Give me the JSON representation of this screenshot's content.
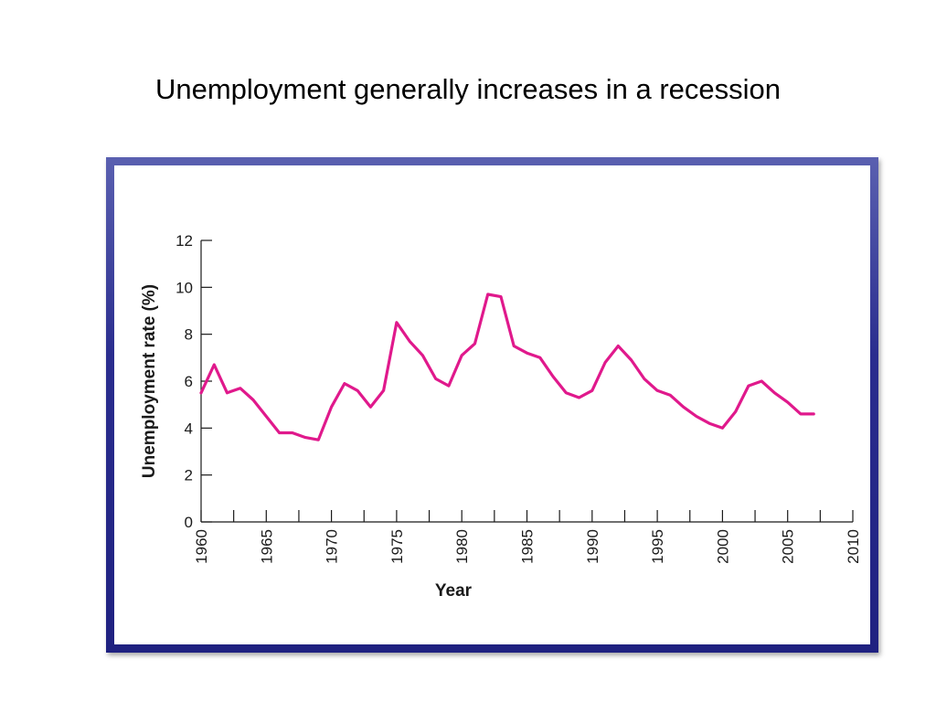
{
  "slide": {
    "title": "Unemployment generally increases in a recession"
  },
  "colors": {
    "frame": "#2a2d8e",
    "line": "#e0198c"
  },
  "chart_data": {
    "type": "line",
    "title": "",
    "xlabel": "Year",
    "ylabel": "Unemployment rate (%)",
    "xlim": [
      1960,
      2010
    ],
    "ylim": [
      0,
      12
    ],
    "xticks": [
      "1960",
      "1965",
      "1970",
      "1975",
      "1980",
      "1985",
      "1990",
      "1995",
      "2000",
      "2005",
      "2010"
    ],
    "yticks": [
      "0",
      "2",
      "4",
      "6",
      "8",
      "10",
      "12"
    ],
    "grid": false,
    "series": [
      {
        "x": [
          1960,
          1961,
          1962,
          1963,
          1964,
          1965,
          1966,
          1967,
          1968,
          1969,
          1970,
          1971,
          1972,
          1973,
          1974,
          1975,
          1976,
          1977,
          1978,
          1979,
          1980,
          1981,
          1982,
          1983,
          1984,
          1985,
          1986,
          1987,
          1988,
          1989,
          1990,
          1991,
          1992,
          1993,
          1994,
          1995,
          1996,
          1997,
          1998,
          1999,
          2000,
          2001,
          2002,
          2003,
          2004,
          2005,
          2006,
          2007
        ],
        "y": [
          5.5,
          6.7,
          5.5,
          5.7,
          5.2,
          4.5,
          3.8,
          3.8,
          3.6,
          3.5,
          4.9,
          5.9,
          5.6,
          4.9,
          5.6,
          8.5,
          7.7,
          7.1,
          6.1,
          5.8,
          7.1,
          7.6,
          9.7,
          9.6,
          7.5,
          7.2,
          7.0,
          6.2,
          5.5,
          5.3,
          5.6,
          6.8,
          7.5,
          6.9,
          6.1,
          5.6,
          5.4,
          4.9,
          4.5,
          4.2,
          4.0,
          4.7,
          5.8,
          6.0,
          5.5,
          5.1,
          4.6,
          4.6
        ]
      }
    ]
  }
}
